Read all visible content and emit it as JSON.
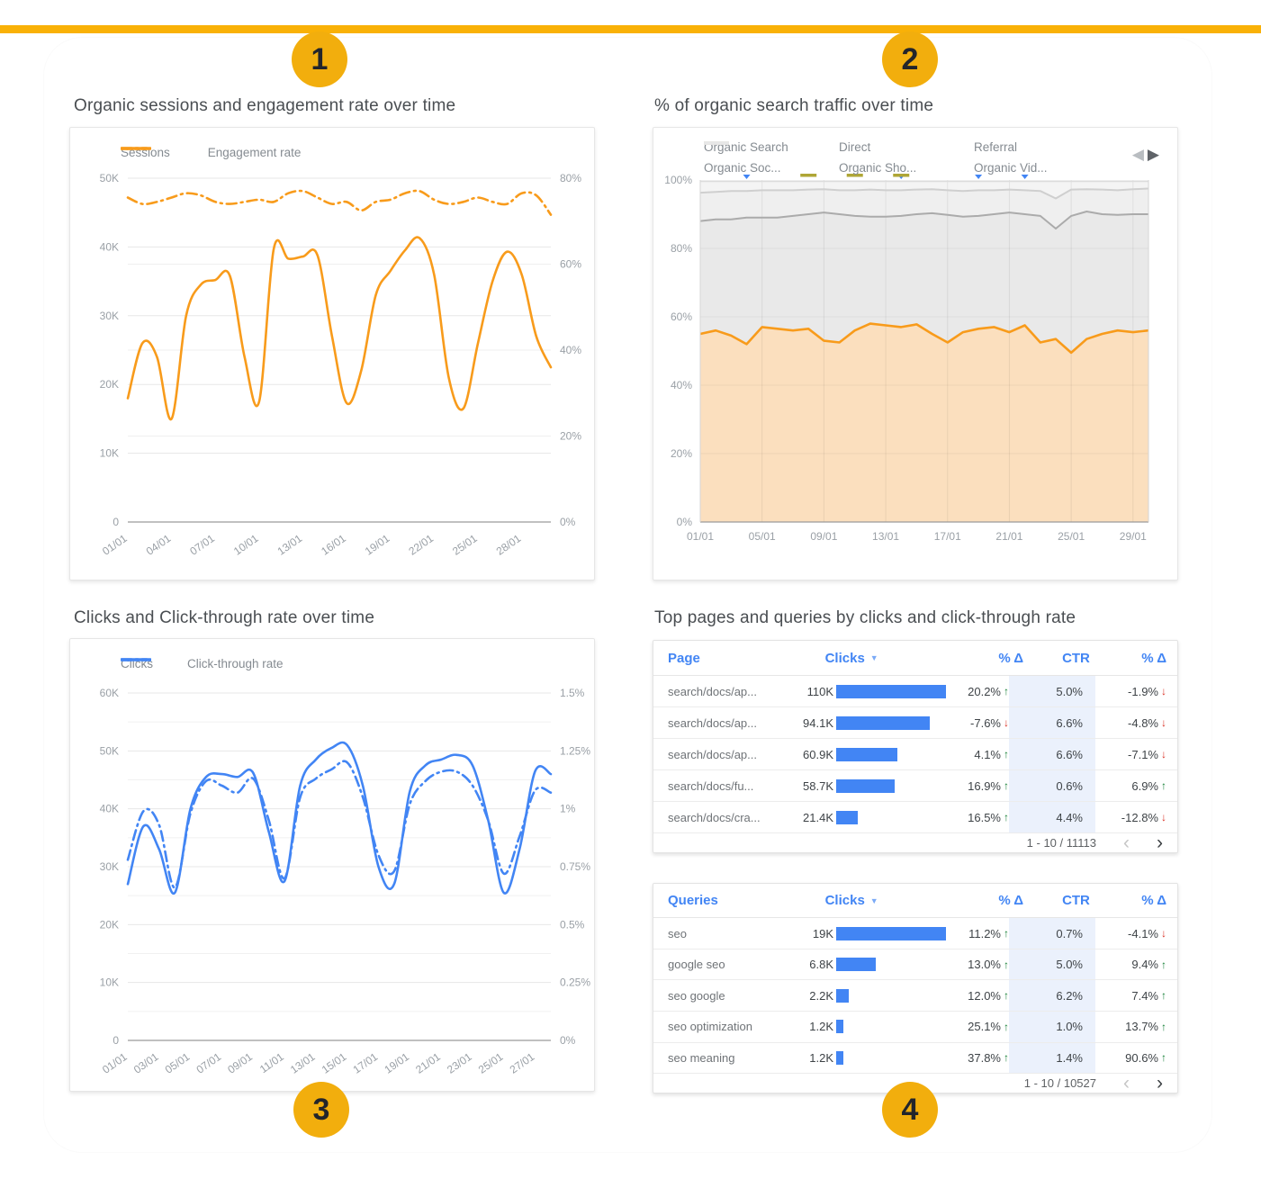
{
  "colors": {
    "accent_orange": "#F89B1B",
    "orange_fill": "#FBDFBE",
    "accent_blue": "#4285F4",
    "yellow_bar": "#F9B107",
    "callout_yellow": "#F2AE0D",
    "green_up": "#188038",
    "red_down": "#D93025",
    "ctr_heat_bg": "#EBF1FC"
  },
  "icons": {
    "prev_series": "◀",
    "next_series": "▶",
    "sort_desc": "▼",
    "arrow_up": "↑",
    "arrow_down": "↓",
    "pager_prev": "‹",
    "pager_next": "›"
  },
  "annotations": {
    "callouts": [
      {
        "label": "1"
      },
      {
        "label": "2"
      },
      {
        "label": "3"
      },
      {
        "label": "4"
      }
    ]
  },
  "chart_data": [
    {
      "type": "line",
      "title": "Organic sessions and engagement rate over time",
      "n_points": 30,
      "label_step": 3,
      "x_labels": [
        "01/01",
        "04/01",
        "07/01",
        "10/01",
        "13/01",
        "16/01",
        "19/01",
        "22/01",
        "25/01",
        "28/01"
      ],
      "left_axis": {
        "label": "Sessions",
        "max": 50000,
        "ticks": [
          "0",
          "10K",
          "20K",
          "30K",
          "40K",
          "50K"
        ],
        "tick_values": [
          0,
          10000,
          20000,
          30000,
          40000,
          50000
        ]
      },
      "right_axis": {
        "label": "Engagement rate",
        "max": 80,
        "ticks": [
          "0%",
          "20%",
          "40%",
          "60%",
          "80%"
        ],
        "tick_values": [
          0,
          20,
          40,
          60,
          80
        ]
      },
      "series": [
        {
          "name": "Sessions",
          "axis": "left",
          "style": "solid",
          "color": "#F89B1B",
          "values": [
            18000,
            26000,
            24000,
            15000,
            30000,
            34500,
            35200,
            35800,
            24000,
            17500,
            39700,
            38300,
            38600,
            38800,
            27000,
            17300,
            22000,
            33000,
            36500,
            39500,
            41300,
            36000,
            21000,
            16500,
            26000,
            35000,
            39300,
            36000,
            27000,
            22500
          ]
        },
        {
          "name": "Engagement rate",
          "axis": "right",
          "style": "dash-dot",
          "color": "#F89B1B",
          "values": [
            75.5,
            74,
            74.5,
            75.5,
            76.5,
            76,
            74.5,
            74,
            74.5,
            75,
            74.5,
            76.5,
            77,
            75.5,
            74,
            74.5,
            72.5,
            74.5,
            75,
            76.5,
            77,
            75,
            74,
            74.5,
            75.5,
            74.5,
            74,
            76.5,
            76,
            71.5
          ]
        }
      ]
    },
    {
      "type": "area",
      "title": "% of organic search traffic over time",
      "n_points": 30,
      "label_step": 4,
      "x_labels": [
        "01/01",
        "05/01",
        "09/01",
        "13/01",
        "17/01",
        "21/01",
        "25/01",
        "29/01"
      ],
      "y_axis": {
        "max": 100,
        "ticks": [
          "0%",
          "20%",
          "40%",
          "60%",
          "80%",
          "100%"
        ],
        "tick_values": [
          0,
          20,
          40,
          60,
          80,
          100
        ]
      },
      "series": [
        {
          "name": "Organic Search",
          "color": "#F89B1B",
          "fill": "#FBDFBE",
          "values": [
            55,
            56,
            54.5,
            52,
            57,
            56.5,
            56,
            56.5,
            53,
            52.5,
            56,
            58,
            57.5,
            57,
            57.8,
            55,
            52.5,
            55.5,
            56.5,
            57,
            55.5,
            57.5,
            52.5,
            53.5,
            49.5,
            53.5,
            55,
            56,
            55.5,
            56
          ]
        },
        {
          "name": "Direct",
          "color": "#ABABAB",
          "fill": "#E9E9E9",
          "values": [
            88,
            88.5,
            88.5,
            89,
            89,
            89,
            89.5,
            90,
            90.5,
            90,
            89.5,
            89.3,
            89.3,
            89.5,
            90,
            90.3,
            89.8,
            89.3,
            89.5,
            90,
            90.5,
            90,
            89.5,
            85.8,
            89.5,
            90.8,
            90,
            89.8,
            90,
            90
          ]
        },
        {
          "name": "Referral",
          "color": "#CFCFCF",
          "fill": "#EFEFEF",
          "values": [
            96.3,
            96.5,
            96.8,
            96.8,
            97,
            97,
            97,
            97.2,
            97.3,
            97,
            97,
            97.2,
            97,
            97,
            97.2,
            97.3,
            97,
            96.8,
            97,
            97,
            97.2,
            97,
            96.8,
            94.6,
            97.2,
            97.3,
            97.2,
            97,
            97.3,
            97.5
          ]
        },
        {
          "name": "Organic Soc...",
          "color": "#DCDCDC",
          "fill": "#F4F4F4",
          "values": []
        },
        {
          "name": "Organic Sho...",
          "color": "#EFEFEF",
          "fill": "#F6F6F6",
          "values": []
        },
        {
          "name": "Organic Vid...",
          "color": "#E7E7E7",
          "fill": "#F6F6F6",
          "values": []
        }
      ],
      "markers": {
        "triangle_idx": [
          3,
          13,
          18,
          21
        ],
        "dash_idx": [
          7,
          10,
          13
        ],
        "triangle_color": "#4285F4",
        "dash_color": "#AFA636"
      }
    },
    {
      "type": "line",
      "title": "Clicks and Click-through rate over time",
      "n_points": 28,
      "label_step": 2,
      "x_labels": [
        "01/01",
        "03/01",
        "05/01",
        "07/01",
        "09/01",
        "11/01",
        "13/01",
        "15/01",
        "17/01",
        "19/01",
        "21/01",
        "23/01",
        "25/01",
        "27/01"
      ],
      "left_axis": {
        "label": "Clicks",
        "max": 60000,
        "ticks": [
          "0",
          "10K",
          "20K",
          "30K",
          "40K",
          "50K",
          "60K"
        ],
        "tick_values": [
          0,
          10000,
          20000,
          30000,
          40000,
          50000,
          60000
        ]
      },
      "right_axis": {
        "label": "Click-through rate",
        "max": 1.5,
        "ticks": [
          "0%",
          "0.25%",
          "0.5%",
          "0.75%",
          "1%",
          "1.25%",
          "1.5%"
        ],
        "tick_values": [
          0,
          0.25,
          0.5,
          0.75,
          1,
          1.25,
          1.5
        ]
      },
      "series": [
        {
          "name": "Clicks",
          "axis": "left",
          "style": "solid",
          "color": "#4285F4",
          "values": [
            27000,
            37000,
            33000,
            25500,
            40000,
            45500,
            46000,
            45500,
            46200,
            36000,
            27500,
            44000,
            48500,
            50500,
            51000,
            44000,
            30000,
            27000,
            43000,
            47500,
            48500,
            49300,
            47500,
            38000,
            25500,
            33000,
            46500,
            46000
          ]
        },
        {
          "name": "Click-through rate",
          "axis": "right",
          "style": "dash-dot",
          "color": "#4285F4",
          "values": [
            0.78,
            0.99,
            0.93,
            0.66,
            0.98,
            1.12,
            1.1,
            1.07,
            1.13,
            0.95,
            0.7,
            1.05,
            1.13,
            1.17,
            1.2,
            1.05,
            0.8,
            0.73,
            1.02,
            1.12,
            1.16,
            1.16,
            1.1,
            0.95,
            0.72,
            0.88,
            1.08,
            1.07
          ]
        }
      ]
    },
    {
      "type": "table",
      "section_title": "Top pages and queries by clicks and click-through rate",
      "columns": [
        "Page",
        "Clicks",
        "% Δ",
        "CTR",
        "% Δ"
      ],
      "sorted_by": "Clicks",
      "rows": [
        {
          "label": "search/docs/ap...",
          "clicks_label": "110K",
          "clicks": 110000,
          "delta": "20.2%",
          "delta_dir": "up",
          "ctr": "5.0%",
          "ctr_delta": "-1.9%",
          "ctr_delta_dir": "down"
        },
        {
          "label": "search/docs/ap...",
          "clicks_label": "94.1K",
          "clicks": 94100,
          "delta": "-7.6%",
          "delta_dir": "down",
          "ctr": "6.6%",
          "ctr_delta": "-4.8%",
          "ctr_delta_dir": "down"
        },
        {
          "label": "search/docs/ap...",
          "clicks_label": "60.9K",
          "clicks": 60900,
          "delta": "4.1%",
          "delta_dir": "up",
          "ctr": "6.6%",
          "ctr_delta": "-7.1%",
          "ctr_delta_dir": "down"
        },
        {
          "label": "search/docs/fu...",
          "clicks_label": "58.7K",
          "clicks": 58700,
          "delta": "16.9%",
          "delta_dir": "up",
          "ctr": "0.6%",
          "ctr_delta": "6.9%",
          "ctr_delta_dir": "up"
        },
        {
          "label": "search/docs/cra...",
          "clicks_label": "21.4K",
          "clicks": 21400,
          "delta": "16.5%",
          "delta_dir": "up",
          "ctr": "4.4%",
          "ctr_delta": "-12.8%",
          "ctr_delta_dir": "down"
        }
      ],
      "pager": {
        "label": "1 - 10 / 11113",
        "prev_enabled": false,
        "next_enabled": true
      }
    },
    {
      "type": "table",
      "columns": [
        "Queries",
        "Clicks",
        "% Δ",
        "CTR",
        "% Δ"
      ],
      "sorted_by": "Clicks",
      "rows": [
        {
          "label": "seo",
          "clicks_label": "19K",
          "clicks": 19000,
          "delta": "11.2%",
          "delta_dir": "up",
          "ctr": "0.7%",
          "ctr_delta": "-4.1%",
          "ctr_delta_dir": "down"
        },
        {
          "label": "google seo",
          "clicks_label": "6.8K",
          "clicks": 6800,
          "delta": "13.0%",
          "delta_dir": "up",
          "ctr": "5.0%",
          "ctr_delta": "9.4%",
          "ctr_delta_dir": "up"
        },
        {
          "label": "seo google",
          "clicks_label": "2.2K",
          "clicks": 2200,
          "delta": "12.0%",
          "delta_dir": "up",
          "ctr": "6.2%",
          "ctr_delta": "7.4%",
          "ctr_delta_dir": "up"
        },
        {
          "label": "seo optimization",
          "clicks_label": "1.2K",
          "clicks": 1200,
          "delta": "25.1%",
          "delta_dir": "up",
          "ctr": "1.0%",
          "ctr_delta": "13.7%",
          "ctr_delta_dir": "up"
        },
        {
          "label": "seo meaning",
          "clicks_label": "1.2K",
          "clicks": 1200,
          "delta": "37.8%",
          "delta_dir": "up",
          "ctr": "1.4%",
          "ctr_delta": "90.6%",
          "ctr_delta_dir": "up"
        }
      ],
      "pager": {
        "label": "1 - 10 / 10527",
        "prev_enabled": false,
        "next_enabled": true
      }
    }
  ]
}
